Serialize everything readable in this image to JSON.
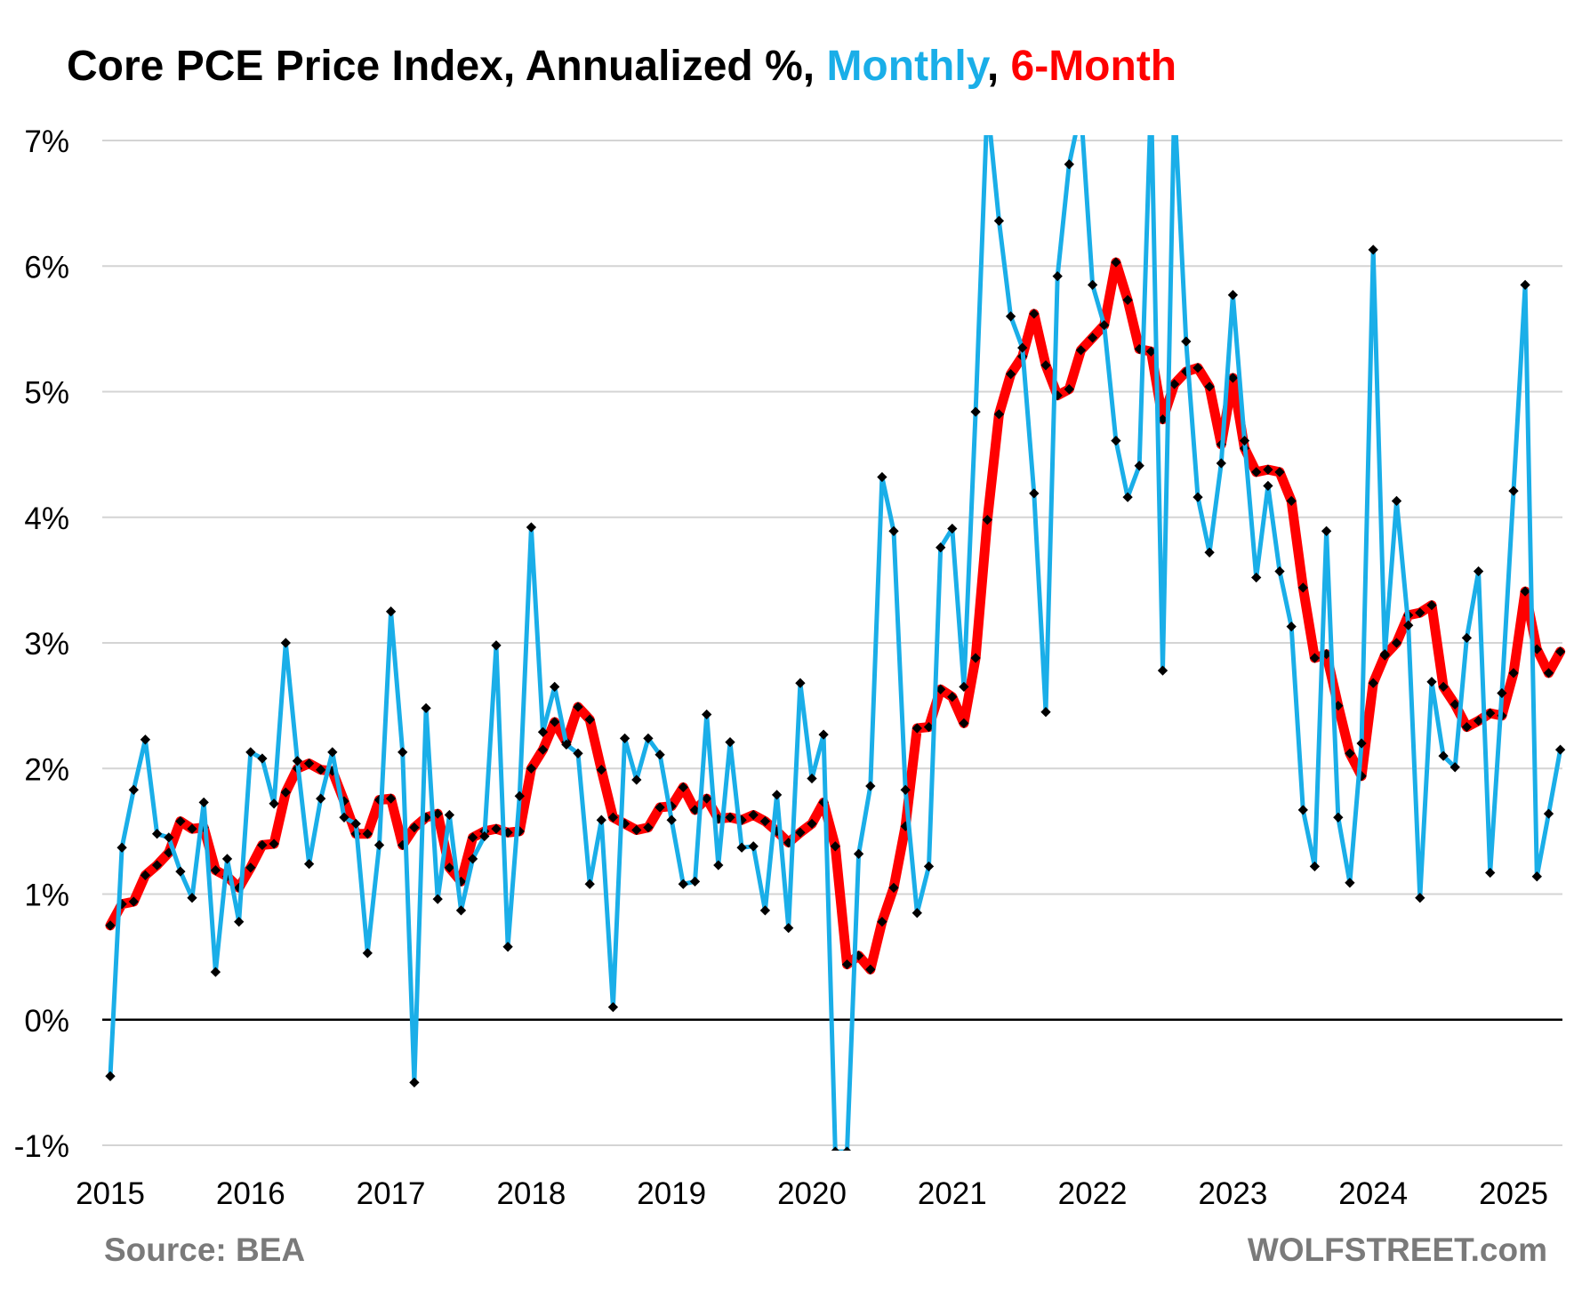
{
  "chart_data": {
    "type": "line",
    "title_parts": [
      {
        "text": "Core PCE Price Index, Annualized %, ",
        "color": "#000000"
      },
      {
        "text": "Monthly",
        "color": "#1aaee8"
      },
      {
        "text": ", ",
        "color": "#000000"
      },
      {
        "text": "6-Month",
        "color": "#ff0000"
      }
    ],
    "source": "Source: BEA",
    "brand": "WOLFSTREET.com",
    "ylim": [
      -1,
      7
    ],
    "yticks": [
      -1,
      0,
      1,
      2,
      3,
      4,
      5,
      6,
      7
    ],
    "ytick_labels": [
      "-1%",
      "0%",
      "1%",
      "2%",
      "3%",
      "4%",
      "5%",
      "6%",
      "7%"
    ],
    "xlim": [
      2015,
      2025.5
    ],
    "xticks": [
      2015,
      2016,
      2017,
      2018,
      2019,
      2020,
      2021,
      2022,
      2023,
      2024,
      2025
    ],
    "xtick_labels": [
      "2015",
      "2016",
      "2017",
      "2018",
      "2019",
      "2020",
      "2021",
      "2022",
      "2023",
      "2024",
      "2025"
    ],
    "grid": true,
    "zero_line": true,
    "x_start": "2015-01",
    "series": [
      {
        "color": "#1aaee8",
        "marker_color": "#000000",
        "values": [
          -0.45,
          1.37,
          1.83,
          2.23,
          1.48,
          1.45,
          1.18,
          0.97,
          1.73,
          0.38,
          1.28,
          0.78,
          2.13,
          2.08,
          1.72,
          3.0,
          2.06,
          1.24,
          1.76,
          2.13,
          1.61,
          1.56,
          0.53,
          1.39,
          3.25,
          2.13,
          -0.5,
          2.48,
          0.96,
          1.63,
          0.87,
          1.28,
          1.46,
          2.98,
          0.58,
          1.78,
          3.92,
          2.29,
          2.65,
          2.19,
          2.12,
          1.08,
          1.59,
          0.1,
          2.24,
          1.91,
          2.24,
          2.11,
          1.59,
          1.08,
          1.1,
          2.43,
          1.23,
          2.21,
          1.37,
          1.38,
          0.87,
          1.79,
          0.73,
          2.68,
          1.92,
          2.27,
          -1.05,
          -1.05,
          1.32,
          1.86,
          4.32,
          3.89,
          1.83,
          0.85,
          1.22,
          3.76,
          3.91,
          2.65,
          4.84,
          7.3,
          6.36,
          5.6,
          5.35,
          4.19,
          2.45,
          5.92,
          6.81,
          7.25,
          5.85,
          5.53,
          4.61,
          4.16,
          4.41,
          7.35,
          2.78,
          7.3,
          5.4,
          4.16,
          3.72,
          4.43,
          5.77,
          4.61,
          3.52,
          4.25,
          3.57,
          3.13,
          1.67,
          1.22,
          3.89,
          1.61,
          1.09,
          2.2,
          6.13,
          2.91,
          4.13,
          3.14,
          0.97,
          2.69,
          2.1,
          2.01,
          3.04,
          3.57,
          1.17,
          2.6,
          4.21,
          5.85,
          1.14,
          1.64,
          2.15
        ]
      },
      {
        "color": "#ff0000",
        "marker_color": "#000000",
        "values": [
          0.75,
          0.92,
          0.94,
          1.15,
          1.23,
          1.33,
          1.58,
          1.52,
          1.53,
          1.19,
          1.14,
          1.05,
          1.21,
          1.39,
          1.4,
          1.81,
          2.0,
          2.04,
          1.99,
          1.98,
          1.74,
          1.48,
          1.48,
          1.75,
          1.76,
          1.39,
          1.53,
          1.61,
          1.64,
          1.21,
          1.1,
          1.45,
          1.5,
          1.52,
          1.49,
          1.5,
          2.0,
          2.15,
          2.37,
          2.21,
          2.49,
          2.39,
          1.99,
          1.61,
          1.56,
          1.51,
          1.53,
          1.69,
          1.7,
          1.85,
          1.67,
          1.76,
          1.6,
          1.61,
          1.59,
          1.63,
          1.58,
          1.5,
          1.41,
          1.49,
          1.56,
          1.73,
          1.38,
          0.44,
          0.51,
          0.4,
          0.78,
          1.05,
          1.54,
          2.32,
          2.33,
          2.63,
          2.57,
          2.36,
          2.88,
          3.98,
          4.82,
          5.14,
          5.28,
          5.62,
          5.21,
          4.97,
          5.02,
          5.33,
          5.43,
          5.53,
          6.03,
          5.73,
          5.34,
          5.32,
          4.78,
          5.06,
          5.16,
          5.19,
          5.04,
          4.58,
          5.11,
          4.55,
          4.36,
          4.38,
          4.36,
          4.13,
          3.44,
          2.88,
          2.91,
          2.5,
          2.12,
          1.94,
          2.68,
          2.9,
          3.0,
          3.22,
          3.24,
          3.3,
          2.65,
          2.51,
          2.33,
          2.38,
          2.44,
          2.42,
          2.76,
          3.41,
          2.95,
          2.76,
          2.93
        ]
      }
    ]
  }
}
